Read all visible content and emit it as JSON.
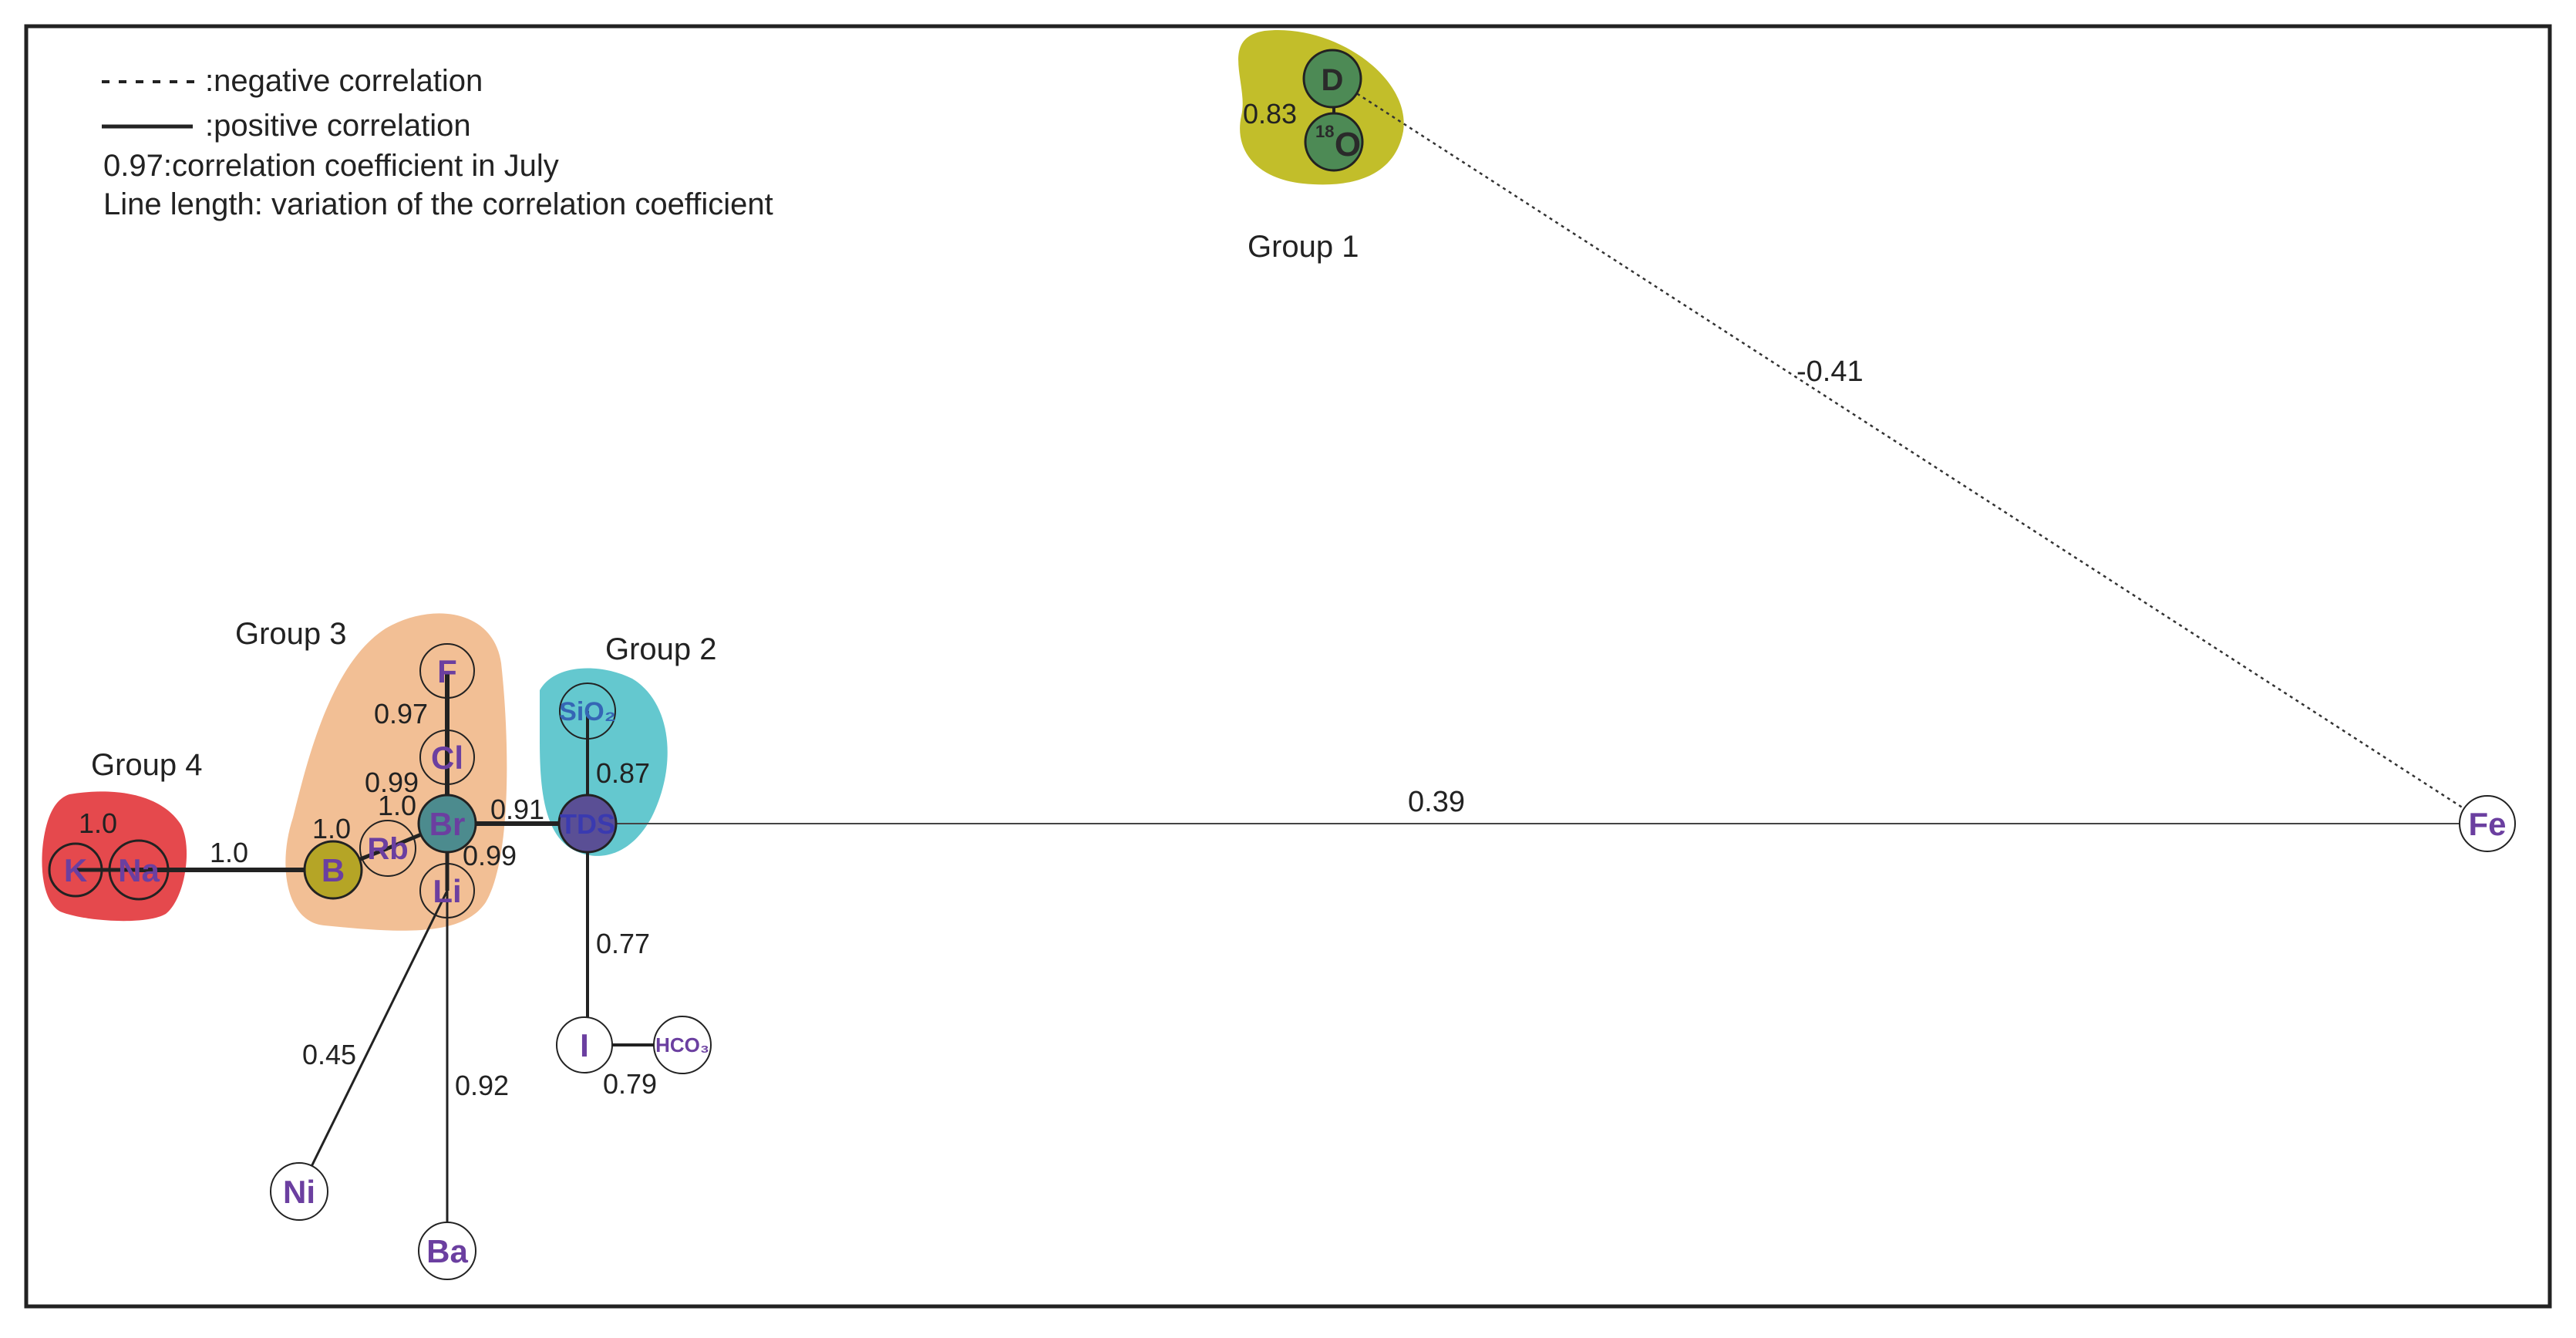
{
  "legend": {
    "negative": ":negative correlation",
    "positive": ":positive correlation",
    "coefficient_note": "0.97:correlation coefficient in July",
    "length_note": "Line length: variation of the correlation coefficient"
  },
  "groups": [
    {
      "id": "g1",
      "label": "Group 1",
      "color": "#c2be2a"
    },
    {
      "id": "g2",
      "label": "Group 2",
      "color": "#64c8cf"
    },
    {
      "id": "g3",
      "label": "Group 3",
      "color": "#f2bf95"
    },
    {
      "id": "g4",
      "label": "Group 4",
      "color": "#e5494d"
    }
  ],
  "nodes": [
    {
      "id": "D",
      "label": "D",
      "fill": "#4d8a55"
    },
    {
      "id": "O18",
      "label": "O",
      "sup": "18",
      "fill": "#4d8a55"
    },
    {
      "id": "SiO2",
      "label": "SiO₂",
      "fill": "none",
      "text_color": "#3566b5"
    },
    {
      "id": "TDS",
      "label": "TDS",
      "fill": "#5a4f95",
      "text_color": "#3a3ab0"
    },
    {
      "id": "F",
      "label": "F",
      "fill": "none"
    },
    {
      "id": "Cl",
      "label": "Cl",
      "fill": "none"
    },
    {
      "id": "Br",
      "label": "Br",
      "fill": "#4c8b8e"
    },
    {
      "id": "Rb",
      "label": "Rb",
      "fill": "none"
    },
    {
      "id": "Li",
      "label": "Li",
      "fill": "none"
    },
    {
      "id": "B",
      "label": "B",
      "fill": "#b5a526"
    },
    {
      "id": "K",
      "label": "K",
      "fill": "none"
    },
    {
      "id": "Na",
      "label": "Na",
      "fill": "none"
    },
    {
      "id": "Ni",
      "label": "Ni",
      "fill": "none"
    },
    {
      "id": "Ba",
      "label": "Ba",
      "fill": "none"
    },
    {
      "id": "I",
      "label": "I",
      "fill": "none"
    },
    {
      "id": "HCO3",
      "label": "HCO₃",
      "fill": "none"
    },
    {
      "id": "Fe",
      "label": "Fe",
      "fill": "none"
    }
  ],
  "edges": [
    {
      "from": "D",
      "to": "O18",
      "value": "0.83",
      "sign": "positive"
    },
    {
      "from": "D",
      "to": "Fe",
      "value": "-0.41",
      "sign": "negative"
    },
    {
      "from": "TDS",
      "to": "Fe",
      "value": "0.39",
      "sign": "positive"
    },
    {
      "from": "SiO2",
      "to": "TDS",
      "value": "0.87",
      "sign": "positive"
    },
    {
      "from": "TDS",
      "to": "I",
      "value": "0.77",
      "sign": "positive"
    },
    {
      "from": "I",
      "to": "HCO3",
      "value": "0.79",
      "sign": "positive"
    },
    {
      "from": "Br",
      "to": "TDS",
      "value": "0.91",
      "sign": "positive"
    },
    {
      "from": "F",
      "to": "Cl",
      "value": "0.97",
      "sign": "positive"
    },
    {
      "from": "Cl",
      "to": "Br",
      "value": "0.99",
      "sign": "positive"
    },
    {
      "from": "Br",
      "to": "Rb",
      "value": "1.0",
      "sign": "positive"
    },
    {
      "from": "Br",
      "to": "Li",
      "value": "0.99",
      "sign": "positive"
    },
    {
      "from": "Rb",
      "to": "B",
      "value": "1.0",
      "sign": "positive"
    },
    {
      "from": "B",
      "to": "Na",
      "value": "1.0",
      "sign": "positive"
    },
    {
      "from": "K",
      "to": "Na",
      "value": "1.0",
      "sign": "positive"
    },
    {
      "from": "Li",
      "to": "Ni",
      "value": "0.45",
      "sign": "positive"
    },
    {
      "from": "Li",
      "to": "Ba",
      "value": "0.92",
      "sign": "positive"
    }
  ]
}
